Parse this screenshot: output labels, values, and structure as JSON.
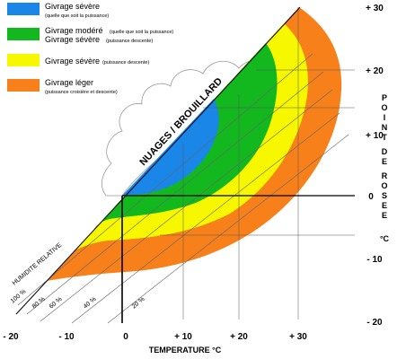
{
  "legend": [
    {
      "main": "Givrage sévère",
      "sub": "(quelle que soit la puissance)",
      "color": "#1a86e8"
    },
    {
      "main": "Givrage modéré",
      "sub": "(quelle que soit la puissance)",
      "main2": "Givrage sévère",
      "sub2": "(puissance descente)",
      "color": "#12b81e"
    },
    {
      "main": "Givrage sévère",
      "sub": "(puissance descente)",
      "color": "#f7f700"
    },
    {
      "main": "Givrage léger",
      "sub": "(puissance croisière et descente)",
      "color": "#f7801a"
    }
  ],
  "x_axis": {
    "label": "TEMPERATURE °C",
    "ticks": [
      "- 20",
      "- 10",
      "0",
      "+ 10",
      "+ 20",
      "+ 30"
    ]
  },
  "y_axis": {
    "title_lines": [
      "P",
      "O",
      "I",
      "N",
      "T",
      "",
      "D",
      "E",
      "",
      "R",
      "O",
      "S",
      "E",
      "E"
    ],
    "unit": "°C",
    "ticks": [
      "+ 30",
      "+ 20",
      "+ 10",
      "0",
      "- 10",
      "- 20"
    ]
  },
  "diagonal_label": "NUAGES / BROUILLARD",
  "humidity_label": "HUMIDITE RELATIVE",
  "humidity_lines": [
    "100 %",
    "80 %",
    "60 %",
    "40 %",
    "20 %"
  ]
}
